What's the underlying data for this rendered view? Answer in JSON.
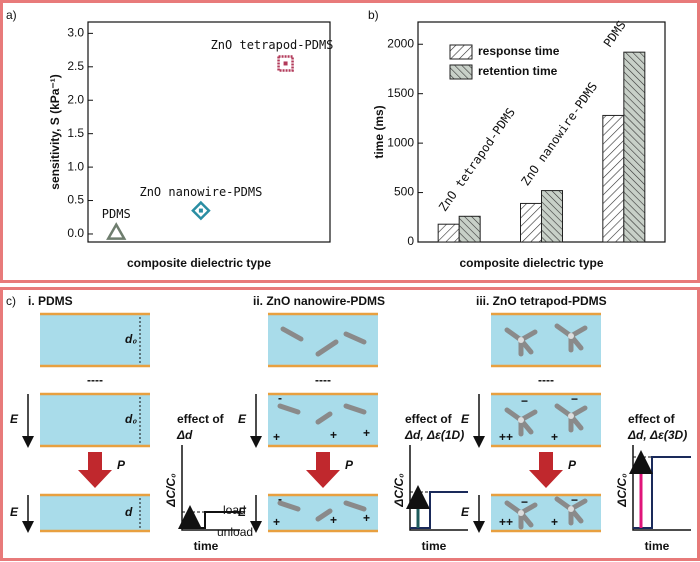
{
  "chart_data": [
    {
      "type": "scatter",
      "panel_label": "a)",
      "y_label": "sensitivity, S (kPa⁻¹)",
      "x_label": "composite dielectric type",
      "categories": [
        "PDMS",
        "ZnO nanowire-PDMS",
        "ZnO tetrapod-PDMS"
      ],
      "values": [
        0.02,
        0.35,
        2.55
      ],
      "colors": [
        "#6e7d6e",
        "#2a8ea3",
        "#b23a5a"
      ],
      "ylim": [
        -0.12,
        3.17
      ],
      "yticks": [
        {
          "value": 0,
          "label": "0.0"
        },
        {
          "value": 0.5,
          "label": "0.5"
        },
        {
          "value": 1,
          "label": "1.0"
        },
        {
          "value": 1.5,
          "label": "1.5"
        },
        {
          "value": 2,
          "label": "2.0"
        },
        {
          "value": 2.5,
          "label": "2.5"
        },
        {
          "value": 3,
          "label": "3.0"
        }
      ]
    },
    {
      "type": "bar",
      "panel_label": "b)",
      "y_label": "time (ms)",
      "x_label": "composite dielectric type",
      "categories": [
        "ZnO tetrapod-PDMS",
        "ZnO nanowire-PDMS",
        "PDMS"
      ],
      "series": [
        {
          "name": "response time",
          "color": "#ffffff",
          "values": [
            180,
            390,
            1280
          ]
        },
        {
          "name": "retention time",
          "color": "#c8d0c8",
          "values": [
            260,
            520,
            1920
          ]
        }
      ],
      "ylim": [
        0,
        2225
      ],
      "yticks": [
        0,
        500,
        1000,
        1500,
        2000
      ],
      "legend": "upper left"
    }
  ],
  "diagram": {
    "panel_label": "c)",
    "columns": [
      {
        "title": "i. PDMS",
        "effect": "Δd"
      },
      {
        "title": "ii. ZnO nanowire-PDMS",
        "effect": "Δd, Δε(1D)"
      },
      {
        "title": "iii. ZnO tetrapod-PDMS",
        "effect": "Δd, Δε(3D)"
      }
    ],
    "thickness": "d₀",
    "thickness_compressed": "d",
    "field": "E",
    "pressure": "P",
    "separator": "----",
    "effect_of": "effect of",
    "y_label": "ΔC/C₀",
    "x_label": "time",
    "load": "load",
    "unload": "unload"
  }
}
